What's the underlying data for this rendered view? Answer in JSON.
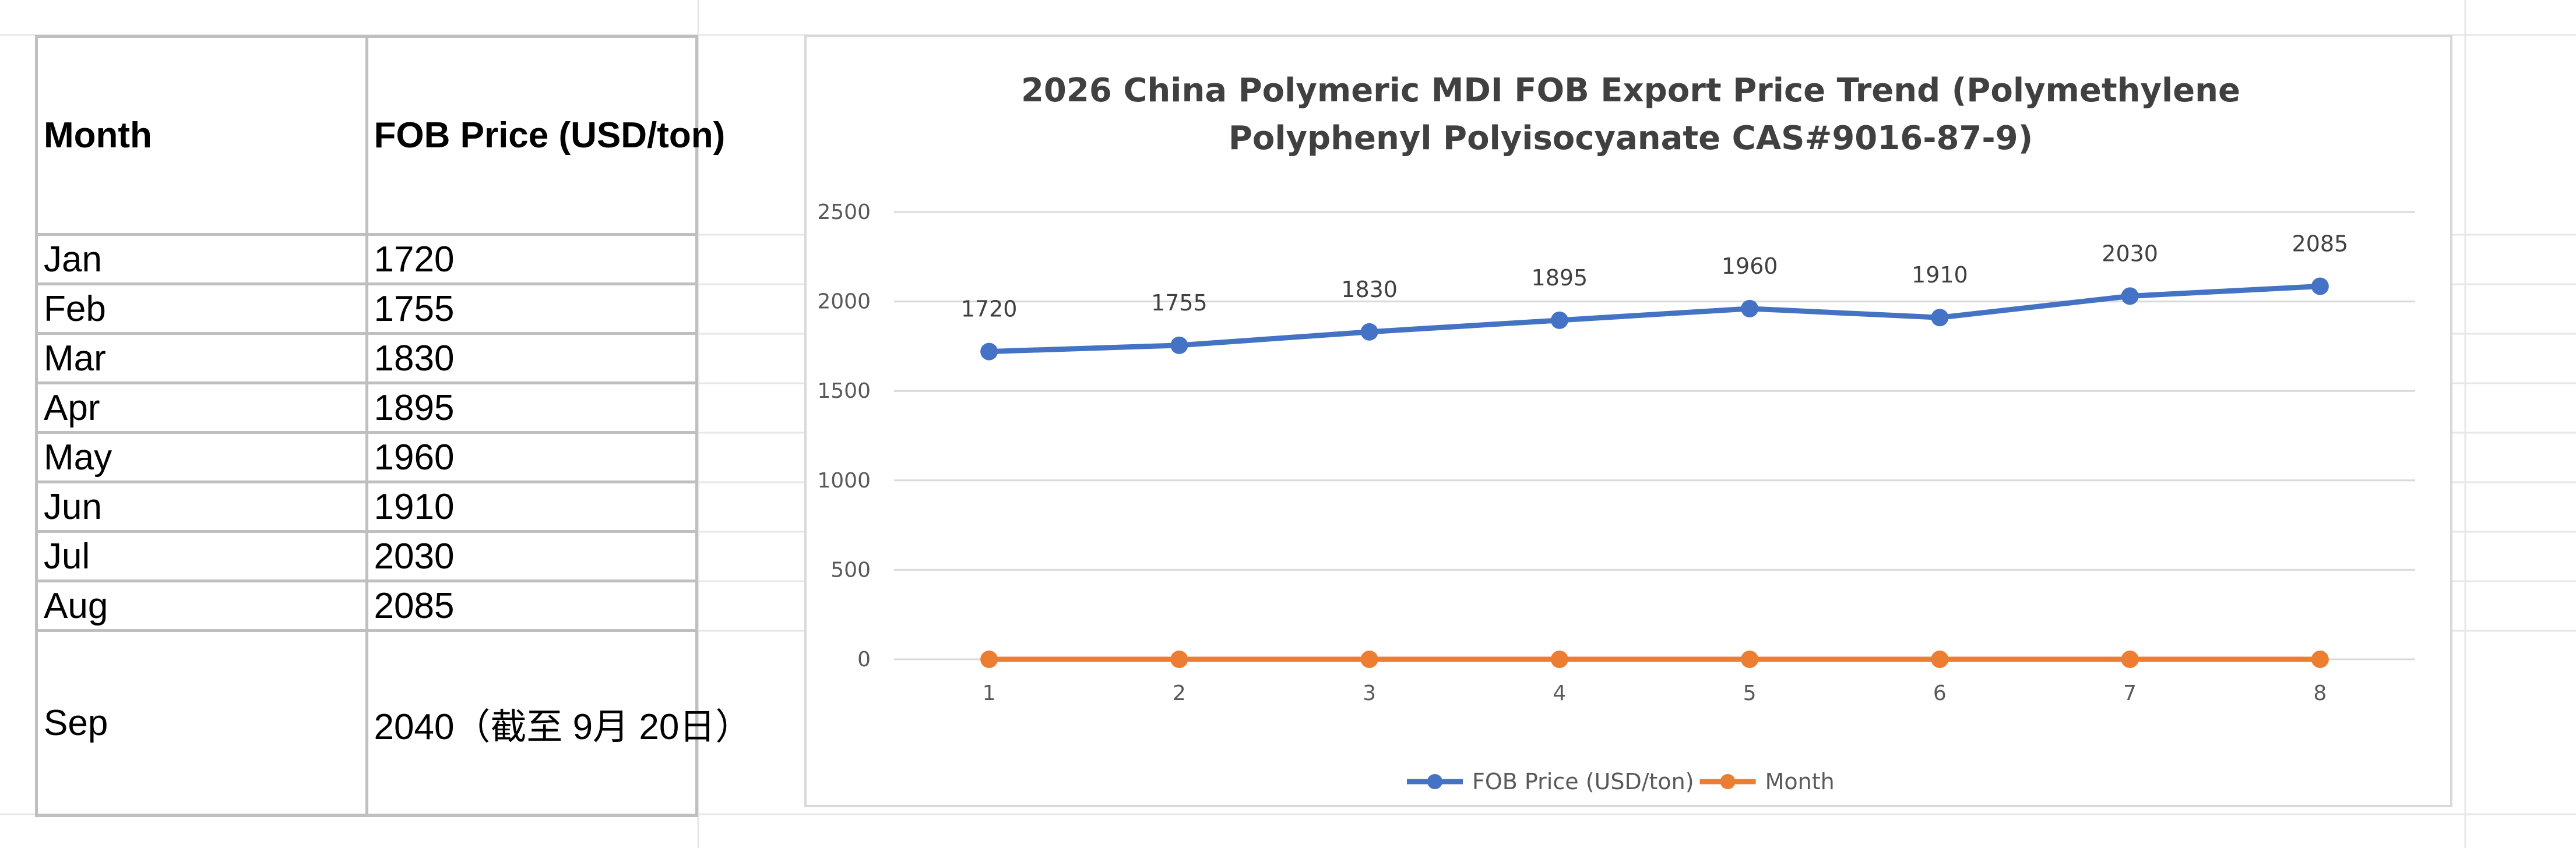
{
  "table": {
    "headers": [
      "Month",
      "FOB Price (USD/ton)"
    ],
    "rows": [
      [
        "Jan",
        "1720"
      ],
      [
        "Feb",
        "1755"
      ],
      [
        "Mar",
        "1830"
      ],
      [
        "Apr",
        "1895"
      ],
      [
        "May",
        "1960"
      ],
      [
        "Jun",
        "1910"
      ],
      [
        "Jul",
        "2030"
      ],
      [
        "Aug",
        "2085"
      ],
      [
        "Sep",
        "2040（截至 9月 20日）"
      ]
    ]
  },
  "chart_data": {
    "type": "line",
    "title_lines": [
      "2026 China Polymeric MDI FOB Export Price Trend (Polymethylene",
      "Polyphenyl Polyisocyanate CAS#9016-87-9)"
    ],
    "x": [
      1,
      2,
      3,
      4,
      5,
      6,
      7,
      8
    ],
    "x_tick_labels": [
      "1",
      "2",
      "3",
      "4",
      "5",
      "6",
      "7",
      "8"
    ],
    "ylim": [
      0,
      2500
    ],
    "y_ticks": [
      0,
      500,
      1000,
      1500,
      2000,
      2500
    ],
    "y_tick_labels": [
      "0",
      "500",
      "1000",
      "1500",
      "2000",
      "2500"
    ],
    "grid": true,
    "legend_position": "bottom",
    "series": [
      {
        "name": "FOB Price (USD/ton)",
        "values": [
          1720,
          1755,
          1830,
          1895,
          1960,
          1910,
          2030,
          2085
        ],
        "data_labels": [
          "1720",
          "1755",
          "1830",
          "1895",
          "1960",
          "1910",
          "2030",
          "2085"
        ],
        "color": "#4472C4"
      },
      {
        "name": "Month",
        "values": [
          0,
          0,
          0,
          0,
          0,
          0,
          0,
          0
        ],
        "color": "#ED7D31"
      }
    ]
  }
}
